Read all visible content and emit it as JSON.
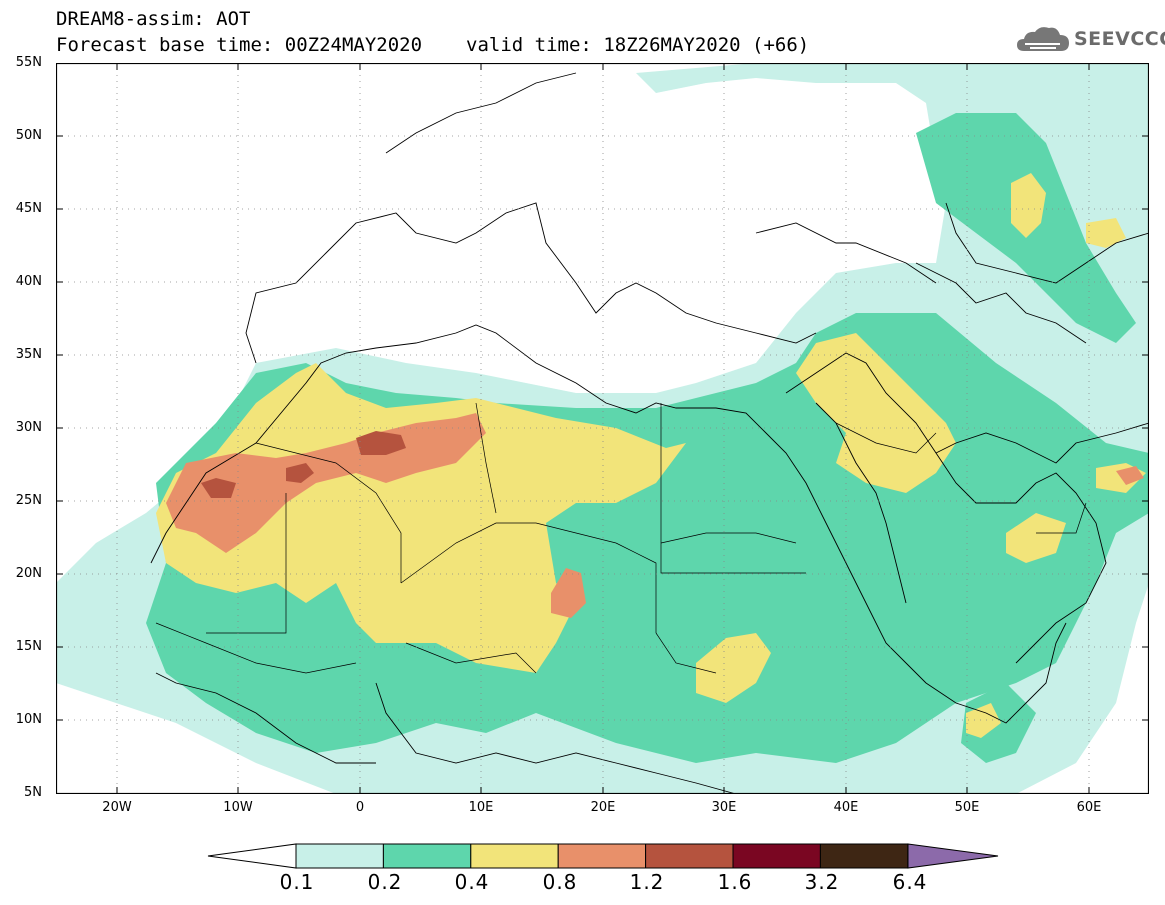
{
  "header": {
    "title": "DREAM8-assim: AOT",
    "base_time": "Forecast base time: 00Z24MAY2020",
    "valid_time": "valid time: 18Z26MAY2020 (+66)"
  },
  "logo": {
    "text": "SEEVCCC",
    "icon": "cloud-logo-icon"
  },
  "map": {
    "lon_range": [
      -25,
      65
    ],
    "lat_range": [
      5,
      55
    ],
    "grid": "dotted",
    "lat_labels": [
      "55N",
      "50N",
      "45N",
      "40N",
      "35N",
      "30N",
      "25N",
      "20N",
      "15N",
      "10N",
      "5N"
    ],
    "lon_labels": [
      "20W",
      "10W",
      "0",
      "10E",
      "20E",
      "30E",
      "40E",
      "50E",
      "60E"
    ]
  },
  "colorbar": {
    "labels": [
      "0.1",
      "0.2",
      "0.4",
      "0.8",
      "1.2",
      "1.6",
      "3.2",
      "6.4"
    ],
    "colors": [
      "#c8f0e8",
      "#5ed6ac",
      "#f2e47a",
      "#e8906a",
      "#b5533e",
      "#7a0622",
      "#3e2614",
      "#8c6aaa"
    ],
    "under_color": "#ffffff"
  }
}
